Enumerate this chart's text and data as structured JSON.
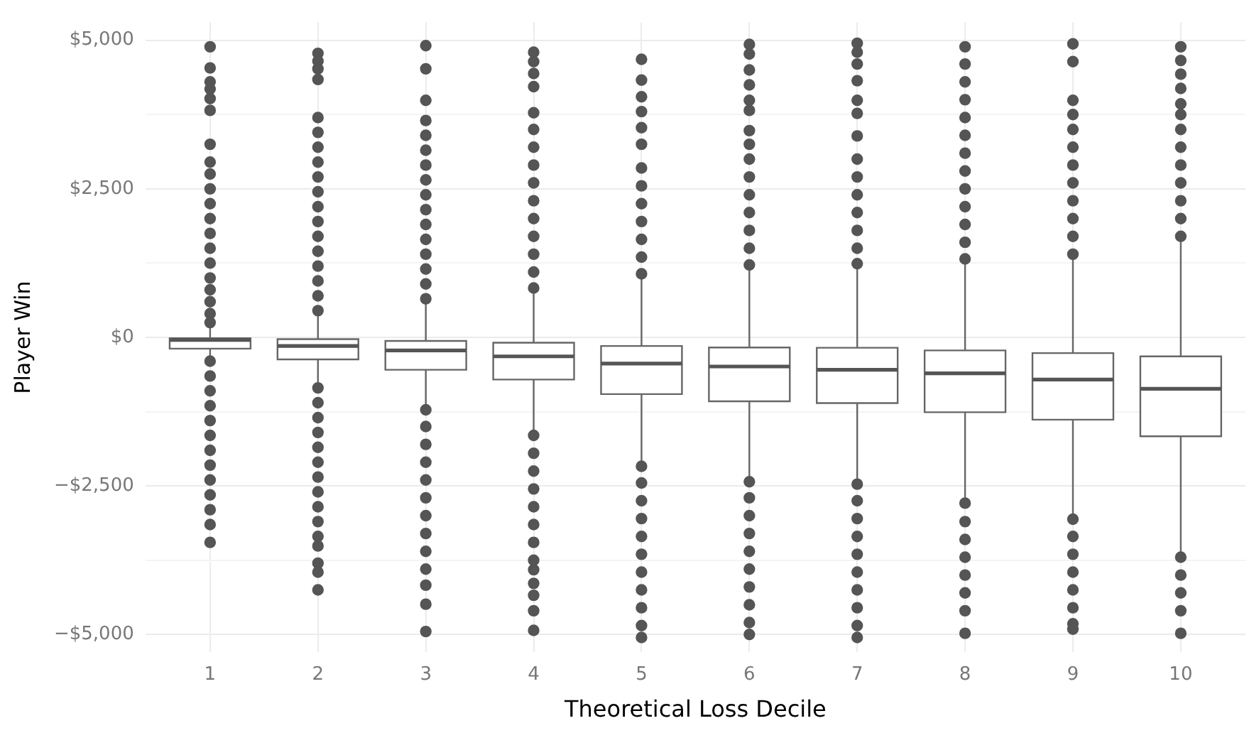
{
  "chart_data": {
    "type": "box",
    "xlabel": "Theoretical Loss Decile",
    "ylabel": "Player Win",
    "categories": [
      "1",
      "2",
      "3",
      "4",
      "5",
      "6",
      "7",
      "8",
      "9",
      "10"
    ],
    "ylim": [
      -5300,
      5300
    ],
    "yticks": [
      {
        "value": -5000,
        "label": "−$5,000"
      },
      {
        "value": -3750,
        "label": null
      },
      {
        "value": -2500,
        "label": "−$2,500"
      },
      {
        "value": -1250,
        "label": null
      },
      {
        "value": 0,
        "label": "$0"
      },
      {
        "value": 1250,
        "label": null
      },
      {
        "value": 2500,
        "label": "$2,500"
      },
      {
        "value": 3750,
        "label": null
      },
      {
        "value": 5000,
        "label": "$5,000"
      }
    ],
    "grid": true,
    "boxes": [
      {
        "low": -360,
        "q1": -190,
        "median": -45,
        "q3": -15,
        "high": 200,
        "outliers": [
          250,
          400,
          600,
          800,
          1000,
          1250,
          1500,
          1750,
          2000,
          2250,
          2500,
          2750,
          2950,
          3250,
          3820,
          4020,
          4180,
          4300,
          4535,
          4890,
          -400,
          -650,
          -900,
          -1150,
          -1400,
          -1650,
          -1900,
          -2150,
          -2400,
          -2650,
          -2900,
          -3150,
          -3450
        ]
      },
      {
        "low": -820,
        "q1": -370,
        "median": -145,
        "q3": -30,
        "high": 410,
        "outliers": [
          450,
          700,
          950,
          1200,
          1450,
          1700,
          1950,
          2200,
          2450,
          2700,
          2950,
          3200,
          3450,
          3700,
          4340,
          4520,
          4650,
          4780,
          -850,
          -1100,
          -1350,
          -1600,
          -1850,
          -2100,
          -2350,
          -2600,
          -2850,
          -3100,
          -3350,
          -3510,
          -3800,
          -3950,
          -4250
        ]
      },
      {
        "low": -1180,
        "q1": -545,
        "median": -220,
        "q3": -60,
        "high": 600,
        "outliers": [
          650,
          900,
          1150,
          1400,
          1650,
          1900,
          2150,
          2400,
          2650,
          2900,
          3150,
          3400,
          3650,
          3990,
          4520,
          4910,
          -1220,
          -1500,
          -1800,
          -2100,
          -2400,
          -2700,
          -3000,
          -3300,
          -3600,
          -3900,
          -4170,
          -4490,
          -4950
        ]
      },
      {
        "low": -1600,
        "q1": -710,
        "median": -320,
        "q3": -90,
        "high": 790,
        "outliers": [
          830,
          1100,
          1400,
          1700,
          2000,
          2300,
          2600,
          2900,
          3200,
          3500,
          3780,
          4220,
          4440,
          4640,
          4800,
          -1650,
          -1950,
          -2250,
          -2550,
          -2850,
          -3150,
          -3450,
          -3750,
          -3910,
          -4140,
          -4340,
          -4600,
          -4930
        ]
      },
      {
        "low": -2130,
        "q1": -955,
        "median": -440,
        "q3": -145,
        "high": 1030,
        "outliers": [
          1070,
          1350,
          1650,
          1950,
          2250,
          2550,
          2850,
          3250,
          3530,
          3800,
          4050,
          4330,
          4680,
          -2170,
          -2450,
          -2750,
          -3050,
          -3350,
          -3650,
          -3950,
          -4250,
          -4550,
          -4850,
          -5050
        ]
      },
      {
        "low": -2390,
        "q1": -1075,
        "median": -490,
        "q3": -170,
        "high": 1180,
        "outliers": [
          1220,
          1500,
          1800,
          2100,
          2400,
          2700,
          3000,
          3250,
          3480,
          3820,
          3990,
          4250,
          4500,
          4770,
          4930,
          -2430,
          -2700,
          -3000,
          -3300,
          -3600,
          -3900,
          -4200,
          -4500,
          -4800,
          -5000
        ]
      },
      {
        "low": -2430,
        "q1": -1105,
        "median": -545,
        "q3": -175,
        "high": 1200,
        "outliers": [
          1240,
          1500,
          1800,
          2100,
          2400,
          2700,
          3000,
          3390,
          3770,
          3990,
          4320,
          4600,
          4800,
          4950,
          -2470,
          -2750,
          -3050,
          -3350,
          -3650,
          -3950,
          -4250,
          -4550,
          -4850,
          -5050
        ]
      },
      {
        "low": -2750,
        "q1": -1260,
        "median": -605,
        "q3": -220,
        "high": 1280,
        "outliers": [
          1320,
          1600,
          1900,
          2200,
          2500,
          2800,
          3100,
          3400,
          3700,
          4000,
          4300,
          4600,
          4890,
          -2790,
          -3100,
          -3400,
          -3700,
          -4000,
          -4300,
          -4600,
          -4980
        ]
      },
      {
        "low": -3020,
        "q1": -1385,
        "median": -710,
        "q3": -265,
        "high": 1360,
        "outliers": [
          1400,
          1700,
          2000,
          2300,
          2600,
          2900,
          3200,
          3500,
          3750,
          3990,
          4640,
          4940,
          -3060,
          -3350,
          -3650,
          -3950,
          -4250,
          -4550,
          -4820,
          -4910
        ]
      },
      {
        "low": -3660,
        "q1": -1665,
        "median": -865,
        "q3": -320,
        "high": 1660,
        "outliers": [
          1700,
          2000,
          2300,
          2600,
          2900,
          3200,
          3500,
          3750,
          3930,
          4190,
          4430,
          4660,
          4890,
          -3700,
          -4000,
          -4300,
          -4600,
          -4980
        ]
      }
    ]
  }
}
